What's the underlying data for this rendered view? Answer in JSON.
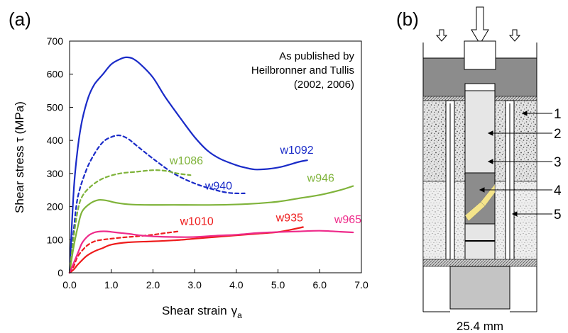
{
  "chart_data": {
    "type": "line",
    "panel_label": "(a)",
    "xlabel": "Shear strain",
    "xlabel_symbol": "γ",
    "xlabel_subscript": "a",
    "ylabel": "Shear stress τ  (MPa)",
    "xlim": [
      0,
      7
    ],
    "ylim": [
      0,
      700
    ],
    "xticks": [
      "0.0",
      "1.0",
      "2.0",
      "3.0",
      "4.0",
      "5.0",
      "6.0",
      "7.0"
    ],
    "yticks": [
      "0",
      "100",
      "200",
      "300",
      "400",
      "500",
      "600",
      "700"
    ],
    "grid": false,
    "annotation": {
      "lines": [
        "As published by",
        "Heilbronner and Tullis",
        "(2002, 2006)"
      ],
      "position": "top-right"
    },
    "series": [
      {
        "name": "w1092",
        "color": "#1a2bc8",
        "dash": "solid",
        "x": [
          0,
          0.1,
          0.2,
          0.3,
          0.45,
          0.6,
          0.8,
          1.0,
          1.2,
          1.35,
          1.5,
          1.7,
          2.0,
          2.3,
          2.7,
          3.0,
          3.3,
          3.6,
          4.0,
          4.2,
          4.5,
          5.0,
          5.5,
          5.7
        ],
        "y": [
          0,
          250,
          380,
          460,
          530,
          570,
          600,
          630,
          645,
          651,
          648,
          630,
          590,
          530,
          460,
          410,
          370,
          345,
          325,
          318,
          312,
          318,
          335,
          340
        ]
      },
      {
        "name": "w940",
        "color": "#1a2bc8",
        "dash": "dashed",
        "x": [
          0,
          0.1,
          0.2,
          0.4,
          0.6,
          0.8,
          1.0,
          1.2,
          1.4,
          1.6,
          2.0,
          2.5,
          3.0,
          3.5,
          3.8,
          4.0,
          4.2
        ],
        "y": [
          0,
          130,
          230,
          310,
          360,
          395,
          410,
          415,
          405,
          385,
          345,
          300,
          270,
          250,
          242,
          240,
          240
        ]
      },
      {
        "name": "w1086",
        "color": "#7fb33a",
        "dash": "dashed",
        "x": [
          0,
          0.1,
          0.2,
          0.3,
          0.5,
          0.8,
          1.2,
          1.6,
          2.0,
          2.3,
          2.6,
          2.9
        ],
        "y": [
          0,
          110,
          190,
          230,
          260,
          285,
          300,
          305,
          310,
          308,
          300,
          295
        ]
      },
      {
        "name": "w946",
        "color": "#7fb33a",
        "dash": "solid",
        "x": [
          0,
          0.1,
          0.2,
          0.3,
          0.5,
          0.7,
          0.9,
          1.1,
          1.4,
          1.8,
          2.5,
          3.5,
          4.3,
          5.0,
          5.5,
          6.0,
          6.5,
          6.8
        ],
        "y": [
          0,
          80,
          140,
          185,
          210,
          220,
          218,
          212,
          207,
          205,
          205,
          205,
          208,
          215,
          225,
          235,
          250,
          262
        ]
      },
      {
        "name": "w1010",
        "color": "#ee1c1c",
        "dash": "dashed",
        "x": [
          0,
          0.1,
          0.2,
          0.4,
          0.6,
          0.8,
          1.0,
          1.3,
          1.6,
          2.0,
          2.3,
          2.6
        ],
        "y": [
          0,
          20,
          50,
          80,
          95,
          100,
          103,
          107,
          110,
          115,
          120,
          125
        ]
      },
      {
        "name": "w935",
        "color": "#ee1c1c",
        "dash": "solid",
        "x": [
          0,
          0.1,
          0.2,
          0.4,
          0.6,
          0.8,
          1.0,
          1.4,
          2.0,
          2.5,
          3.0,
          3.5,
          4.0,
          4.5,
          5.0,
          5.3,
          5.6
        ],
        "y": [
          0,
          10,
          25,
          50,
          65,
          75,
          85,
          92,
          95,
          98,
          103,
          108,
          113,
          118,
          123,
          130,
          138
        ]
      },
      {
        "name": "w965",
        "color": "#ee2a8a",
        "dash": "solid",
        "x": [
          0,
          0.1,
          0.2,
          0.3,
          0.45,
          0.6,
          0.75,
          0.9,
          1.1,
          1.4,
          1.7,
          2.0,
          2.5,
          3.0,
          3.5,
          4.0,
          4.5,
          5.0,
          5.5,
          6.0,
          6.5,
          6.8
        ],
        "y": [
          0,
          30,
          60,
          90,
          112,
          122,
          125,
          125,
          122,
          118,
          113,
          110,
          108,
          108,
          112,
          115,
          120,
          123,
          125,
          127,
          124,
          122
        ]
      }
    ],
    "series_labels": [
      {
        "text": "w1092",
        "color": "#1a2bc8",
        "x": 5.05,
        "y": 360
      },
      {
        "text": "w940",
        "color": "#1a2bc8",
        "x": 3.25,
        "y": 252
      },
      {
        "text": "w1086",
        "color": "#7fb33a",
        "x": 2.4,
        "y": 328
      },
      {
        "text": "w946",
        "color": "#7fb33a",
        "x": 5.7,
        "y": 275
      },
      {
        "text": "w1010",
        "color": "#ee1c1c",
        "x": 2.65,
        "y": 145
      },
      {
        "text": "w935",
        "color": "#ee1c1c",
        "x": 4.95,
        "y": 155
      },
      {
        "text": "w965",
        "color": "#ee2a8a",
        "x": 6.35,
        "y": 150
      }
    ]
  },
  "diagram": {
    "panel_label": "(b)",
    "callouts": [
      "1",
      "2",
      "3",
      "4",
      "5"
    ],
    "dimension_label": "25.4 mm"
  }
}
